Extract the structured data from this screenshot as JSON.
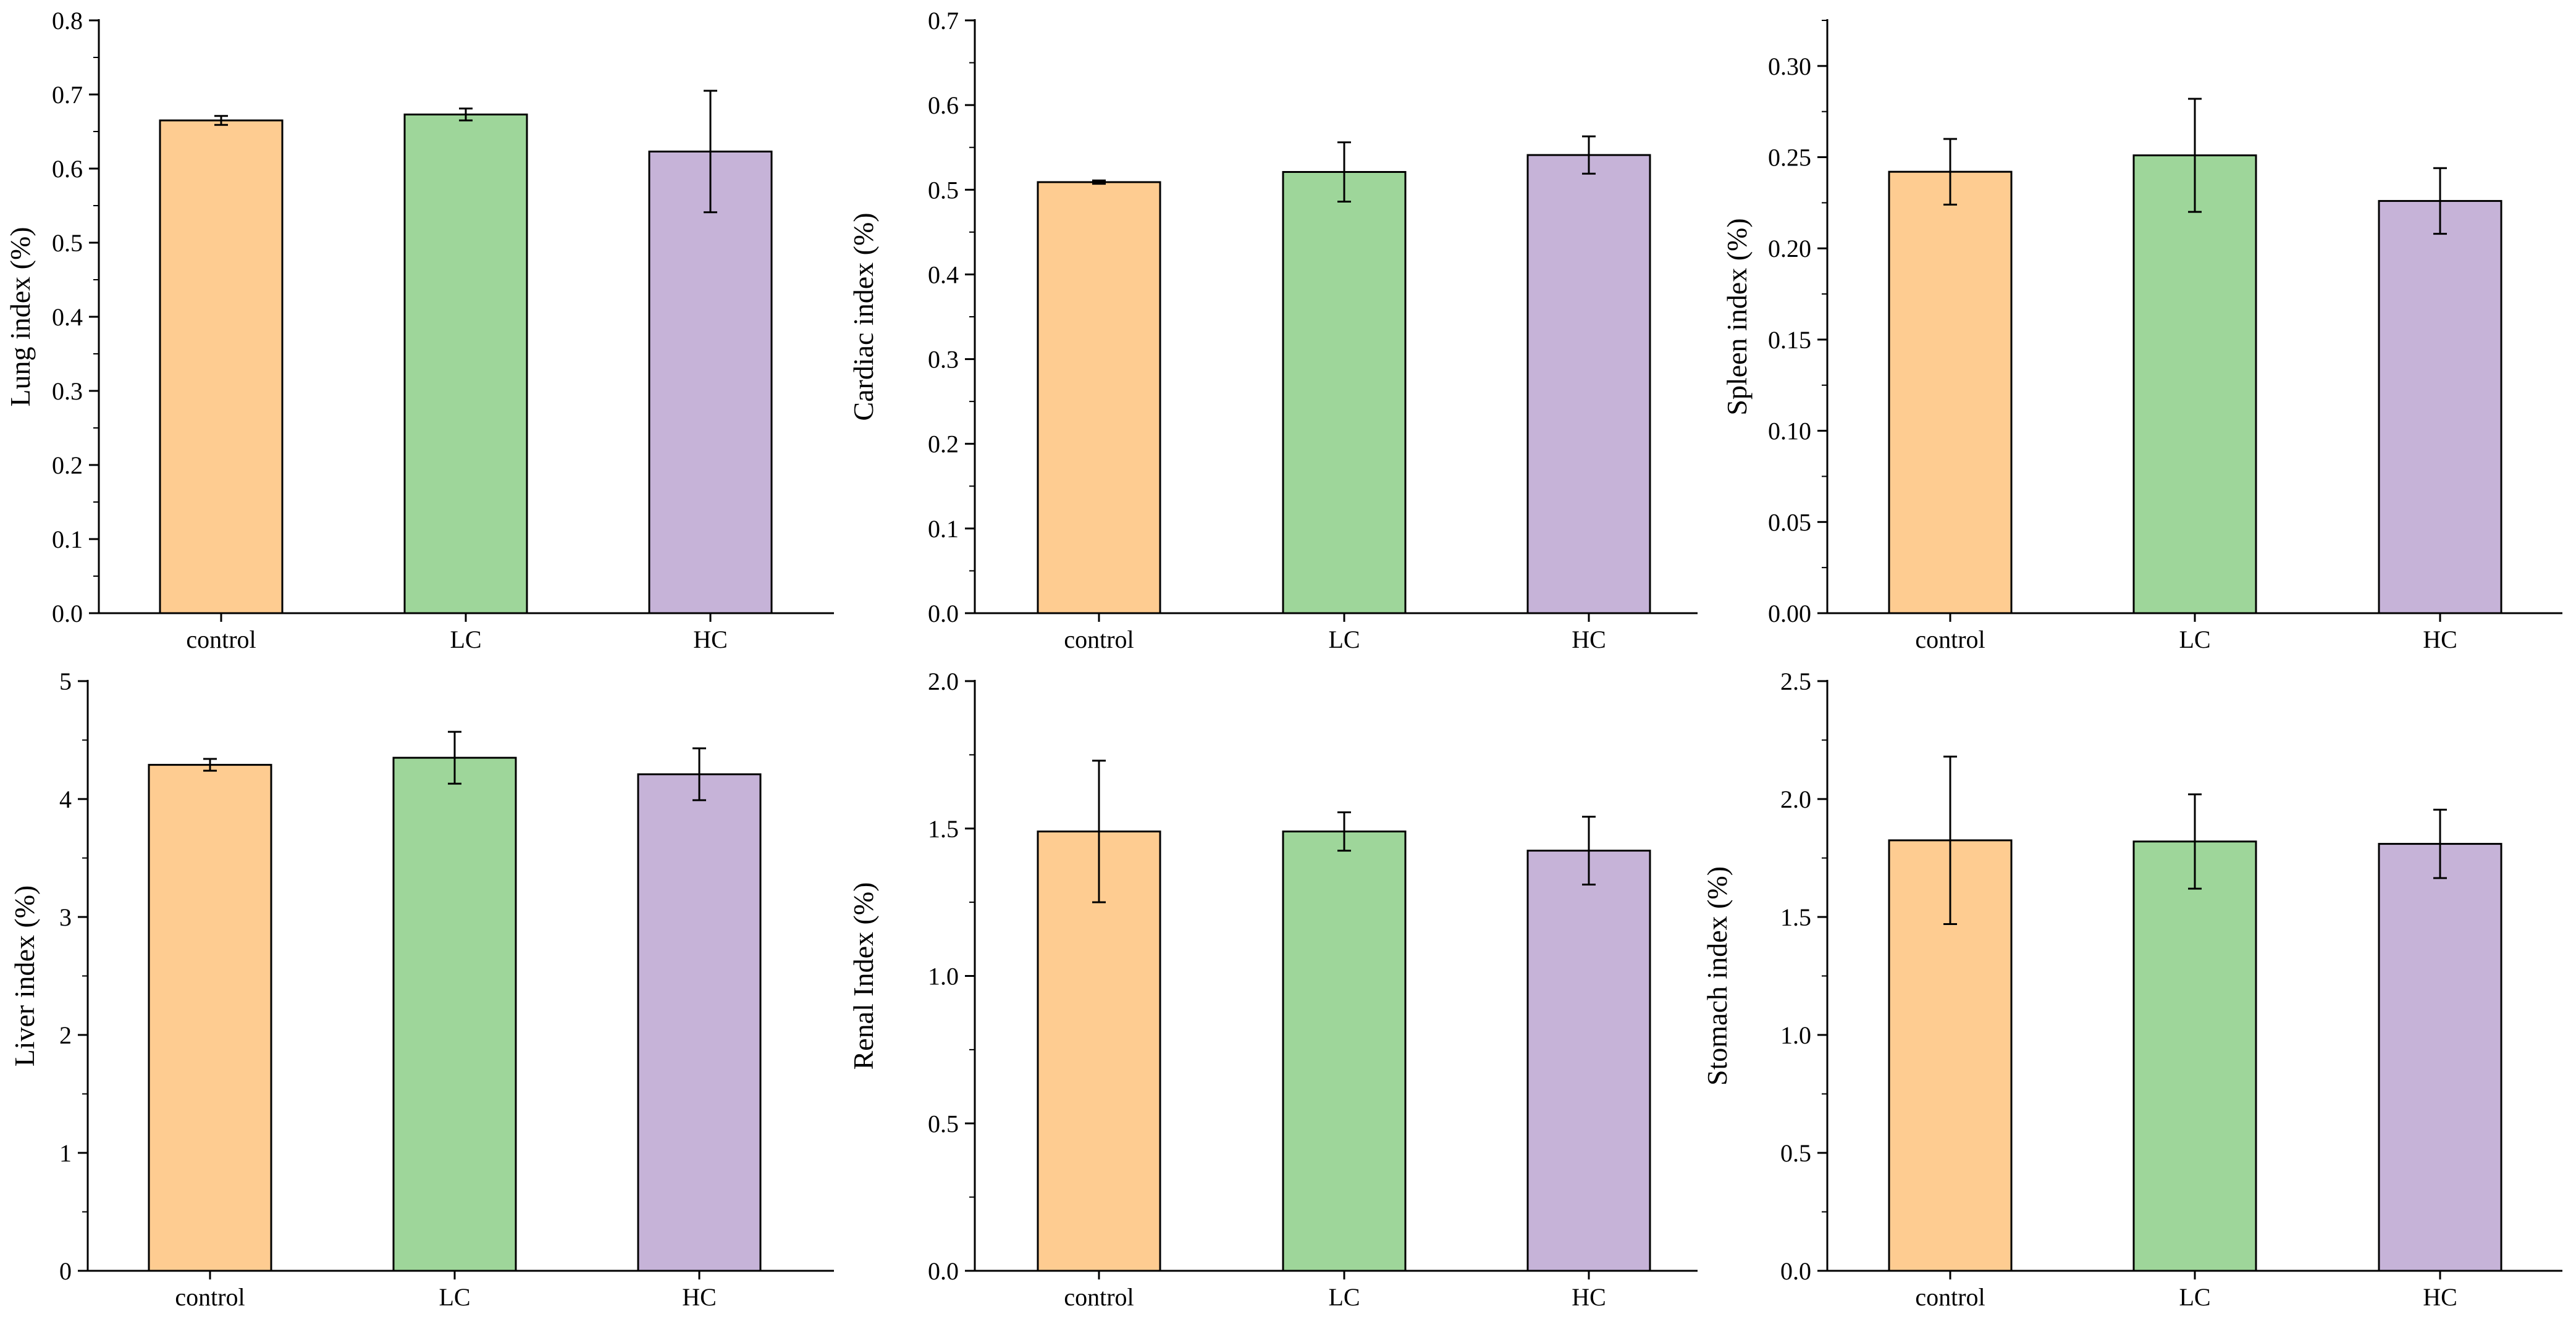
{
  "chart_data": [
    {
      "type": "bar",
      "ylabel": "Lung index (%)",
      "categories": [
        "control",
        "LC",
        "HC"
      ],
      "values": [
        0.665,
        0.673,
        0.623
      ],
      "errors": [
        0.006,
        0.008,
        0.082
      ],
      "ylim": [
        0,
        0.8
      ],
      "yticks": [
        0.0,
        0.1,
        0.2,
        0.3,
        0.4,
        0.5,
        0.6,
        0.7,
        0.8
      ],
      "ytick_labels": [
        "0.0",
        "0.1",
        "0.2",
        "0.3",
        "0.4",
        "0.5",
        "0.6",
        "0.7",
        "0.8"
      ],
      "minor_per_major": 1,
      "colors": [
        "#FECC91",
        "#9ED69A",
        "#C6B3D8"
      ]
    },
    {
      "type": "bar",
      "ylabel": "Cardiac index (%)",
      "categories": [
        "control",
        "LC",
        "HC"
      ],
      "values": [
        0.509,
        0.521,
        0.541
      ],
      "errors": [
        0.002,
        0.035,
        0.022
      ],
      "ylim": [
        0,
        0.7
      ],
      "yticks": [
        0.0,
        0.1,
        0.2,
        0.3,
        0.4,
        0.5,
        0.6,
        0.7
      ],
      "ytick_labels": [
        "0.0",
        "0.1",
        "0.2",
        "0.3",
        "0.4",
        "0.5",
        "0.6",
        "0.7"
      ],
      "minor_per_major": 1,
      "colors": [
        "#FECC91",
        "#9ED69A",
        "#C6B3D8"
      ]
    },
    {
      "type": "bar",
      "ylabel": "Spleen index (%)",
      "categories": [
        "control",
        "LC",
        "HC"
      ],
      "values": [
        0.242,
        0.251,
        0.226
      ],
      "errors": [
        0.018,
        0.031,
        0.018
      ],
      "ylim": [
        0,
        0.325
      ],
      "yticks": [
        0.0,
        0.05,
        0.1,
        0.15,
        0.2,
        0.25,
        0.3
      ],
      "ytick_labels": [
        "0.00",
        "0.05",
        "0.10",
        "0.15",
        "0.20",
        "0.25",
        "0.30"
      ],
      "minor_per_major": 1,
      "colors": [
        "#FECC91",
        "#9ED69A",
        "#C6B3D8"
      ]
    },
    {
      "type": "bar",
      "ylabel": "Liver index (%)",
      "categories": [
        "control",
        "LC",
        "HC"
      ],
      "values": [
        4.29,
        4.35,
        4.21
      ],
      "errors": [
        0.05,
        0.22,
        0.22
      ],
      "ylim": [
        0,
        5
      ],
      "yticks": [
        0,
        1,
        2,
        3,
        4,
        5
      ],
      "ytick_labels": [
        "0",
        "1",
        "2",
        "3",
        "4",
        "5"
      ],
      "minor_per_major": 1,
      "colors": [
        "#FECC91",
        "#9ED69A",
        "#C6B3D8"
      ]
    },
    {
      "type": "bar",
      "ylabel": "Renal Index (%)",
      "categories": [
        "control",
        "LC",
        "HC"
      ],
      "values": [
        1.49,
        1.49,
        1.425
      ],
      "errors": [
        0.24,
        0.065,
        0.115
      ],
      "ylim": [
        0,
        2.0
      ],
      "yticks": [
        0.0,
        0.5,
        1.0,
        1.5,
        2.0
      ],
      "ytick_labels": [
        "0.0",
        "0.5",
        "1.0",
        "1.5",
        "2.0"
      ],
      "minor_per_major": 1,
      "colors": [
        "#FECC91",
        "#9ED69A",
        "#C6B3D8"
      ]
    },
    {
      "type": "bar",
      "ylabel": "Stomach index (%)",
      "categories": [
        "control",
        "LC",
        "HC"
      ],
      "values": [
        1.825,
        1.82,
        1.81
      ],
      "errors": [
        0.355,
        0.2,
        0.145
      ],
      "ylim": [
        0,
        2.5
      ],
      "yticks": [
        0.0,
        0.5,
        1.0,
        1.5,
        2.0,
        2.5
      ],
      "ytick_labels": [
        "0.0",
        "0.5",
        "1.0",
        "1.5",
        "2.0",
        "2.5"
      ],
      "minor_per_major": 1,
      "colors": [
        "#FECC91",
        "#9ED69A",
        "#C6B3D8"
      ]
    }
  ]
}
